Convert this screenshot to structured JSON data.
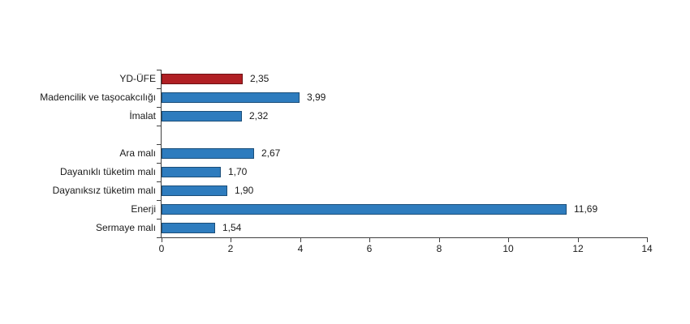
{
  "chart_data": {
    "type": "bar",
    "orientation": "horizontal",
    "title": "",
    "xlabel": "",
    "ylabel": "",
    "xlim": [
      0,
      14
    ],
    "x_ticks": [
      "0",
      "2",
      "4",
      "6",
      "8",
      "10",
      "12",
      "14"
    ],
    "x_tick_values": [
      0,
      2,
      4,
      6,
      8,
      10,
      12,
      14
    ],
    "grid": false,
    "legend": "none",
    "categories": [
      "YD-ÜFE",
      "Madencilik ve taşocakcılığı",
      "İmalat",
      "",
      "Ara malı",
      "Dayanıklı tüketim malı",
      "Dayanıksız tüketim malı",
      "Enerji",
      "Sermaye malı"
    ],
    "values": [
      2.35,
      3.99,
      2.32,
      null,
      2.67,
      1.7,
      1.9,
      11.69,
      1.54
    ],
    "value_labels": [
      "2,35",
      "3,99",
      "2,32",
      "",
      "2,67",
      "1,70",
      "1,90",
      "11,69",
      "1,54"
    ]
  },
  "colors": {
    "highlight_bar_fill": "#b01f24",
    "highlight_bar_border": "#6e1114",
    "default_bar_fill": "#2e7cbe",
    "default_bar_border": "#1b4e79",
    "axis": "#404040",
    "text": "#1a1a1a",
    "background": "#ffffff"
  },
  "bar_styles": [
    {
      "fill": "#b01f24",
      "border": "#6e1114"
    },
    {
      "fill": "#2e7cbe",
      "border": "#1b4e79"
    },
    {
      "fill": "#2e7cbe",
      "border": "#1b4e79"
    },
    null,
    {
      "fill": "#2e7cbe",
      "border": "#1b4e79"
    },
    {
      "fill": "#2e7cbe",
      "border": "#1b4e79"
    },
    {
      "fill": "#2e7cbe",
      "border": "#1b4e79"
    },
    {
      "fill": "#2e7cbe",
      "border": "#1b4e79"
    },
    {
      "fill": "#2e7cbe",
      "border": "#1b4e79"
    }
  ]
}
